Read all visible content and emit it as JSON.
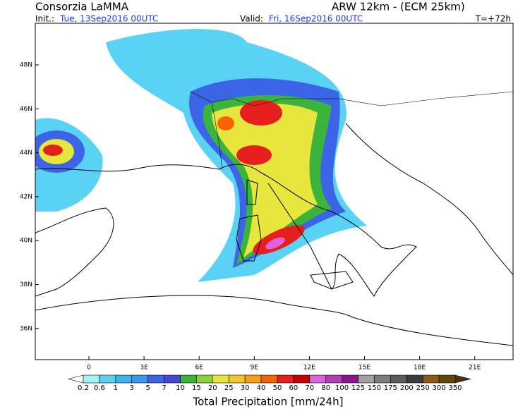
{
  "header": {
    "title": "Consorzia LaMMA",
    "model": "ARW 12km - (ECM 25km)",
    "init_label": "Init.:",
    "init": "Tue, 13Sep2016 00UTC",
    "valid_label": "Valid:",
    "valid": "Fri, 16Sep2016 00UTC",
    "lead": "T=+72h"
  },
  "map": {
    "lat_labels": [
      "48N",
      "46N",
      "44N",
      "42N",
      "40N",
      "38N",
      "36N"
    ],
    "lon_labels": [
      "0",
      "3E",
      "6E",
      "9E",
      "12E",
      "15E",
      "18E",
      "21E"
    ]
  },
  "colorbar": {
    "levels": [
      "0.2",
      "0.6",
      "1",
      "3",
      "5",
      "7",
      "10",
      "15",
      "20",
      "25",
      "30",
      "40",
      "50",
      "60",
      "70",
      "80",
      "100",
      "125",
      "150",
      "175",
      "200",
      "250",
      "300",
      "350"
    ],
    "under_color": "#ffffff",
    "over_color": "#50320a",
    "colors": [
      "#9ff5f5",
      "#5ad2f5",
      "#3cb4f0",
      "#3c96f0",
      "#3c64e6",
      "#4646dc",
      "#3cb43c",
      "#8cd23c",
      "#e6e63c",
      "#f0c828",
      "#f5a014",
      "#f56400",
      "#e61e1e",
      "#c80000",
      "#dc64dc",
      "#b43cb4",
      "#8c148c",
      "#a0a0a0",
      "#7d7d7d",
      "#5a5a5a",
      "#3c3c3c",
      "#8c5a14",
      "#64460a"
    ],
    "title": "Total Precipitation [mm/24h]"
  }
}
